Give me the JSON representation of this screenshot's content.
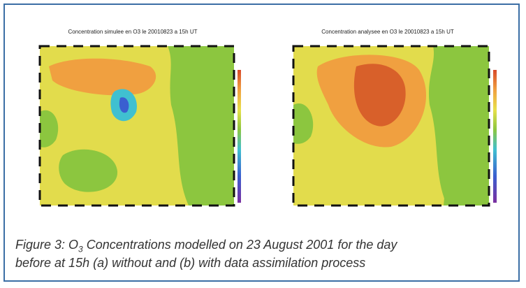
{
  "figure": {
    "panels": [
      {
        "title": "Concentration simulee en O3 le 20010823 a 15h UT"
      },
      {
        "title": "Concentration analysee en O3 le 20010823 a 15h UT"
      }
    ],
    "caption": {
      "prefix": "Figure 3: O",
      "subscript": "3",
      "line1": " Concentrations modelled on 23 August 2001 for the day",
      "line2": "before at 15h (a) without and (b) with data assimilation process"
    }
  }
}
